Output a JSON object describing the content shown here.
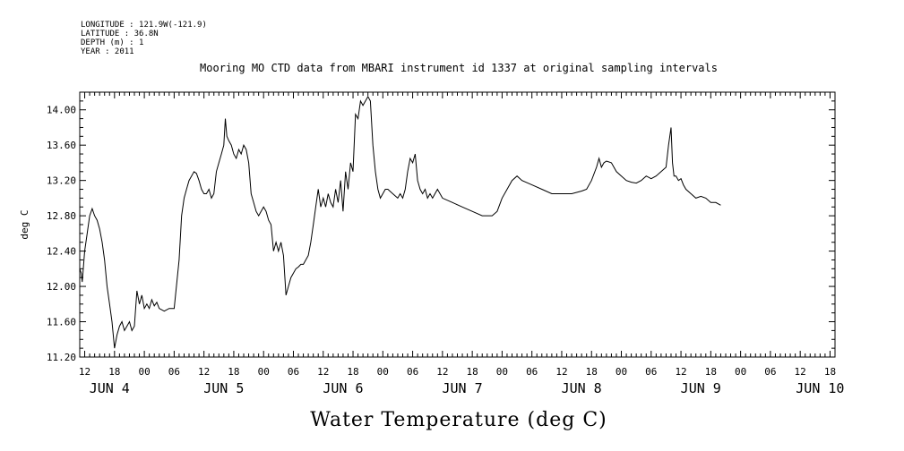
{
  "meta": {
    "longitude": "LONGITUDE : 121.9W(-121.9)",
    "latitude": "LATITUDE : 36.8N",
    "depth": "DEPTH (m) : 1",
    "year": "YEAR : 2011"
  },
  "chart_data": {
    "type": "line",
    "title": "Mooring MO CTD data from MBARI instrument id 1337 at original sampling intervals",
    "xlabel": "Water Temperature (deg C)",
    "ylabel": "deg C",
    "x_units": "hours since 2011-06-04 00:00",
    "xlim": [
      11,
      163
    ],
    "ylim": [
      11.2,
      14.2
    ],
    "yticks": [
      "11.20",
      "11.60",
      "12.00",
      "12.40",
      "12.80",
      "13.20",
      "13.60",
      "14.00"
    ],
    "xticks": [
      {
        "t": 12,
        "label": "12"
      },
      {
        "t": 18,
        "label": "18"
      },
      {
        "t": 24,
        "label": "00"
      },
      {
        "t": 30,
        "label": "06"
      },
      {
        "t": 36,
        "label": "12"
      },
      {
        "t": 42,
        "label": "18"
      },
      {
        "t": 48,
        "label": "00"
      },
      {
        "t": 54,
        "label": "06"
      },
      {
        "t": 60,
        "label": "12"
      },
      {
        "t": 66,
        "label": "18"
      },
      {
        "t": 72,
        "label": "00"
      },
      {
        "t": 78,
        "label": "06"
      },
      {
        "t": 84,
        "label": "12"
      },
      {
        "t": 90,
        "label": "18"
      },
      {
        "t": 96,
        "label": "00"
      },
      {
        "t": 102,
        "label": "06"
      },
      {
        "t": 108,
        "label": "12"
      },
      {
        "t": 114,
        "label": "18"
      },
      {
        "t": 120,
        "label": "00"
      },
      {
        "t": 126,
        "label": "06"
      },
      {
        "t": 132,
        "label": "12"
      },
      {
        "t": 138,
        "label": "18"
      },
      {
        "t": 144,
        "label": "00"
      },
      {
        "t": 150,
        "label": "06"
      },
      {
        "t": 156,
        "label": "12"
      },
      {
        "t": 162,
        "label": "18"
      }
    ],
    "day_labels": [
      {
        "t": 17,
        "label": "JUN  4"
      },
      {
        "t": 40,
        "label": "JUN  5"
      },
      {
        "t": 64,
        "label": "JUN  6"
      },
      {
        "t": 88,
        "label": "JUN  7"
      },
      {
        "t": 112,
        "label": "JUN  8"
      },
      {
        "t": 136,
        "label": "JUN  9"
      },
      {
        "t": 160,
        "label": "JUN 10"
      }
    ],
    "series": [
      {
        "points": [
          [
            11.0,
            12.2
          ],
          [
            11.3,
            12.15
          ],
          [
            11.5,
            12.05
          ],
          [
            12.0,
            12.4
          ],
          [
            12.5,
            12.6
          ],
          [
            13.0,
            12.8
          ],
          [
            13.5,
            12.88
          ],
          [
            14.0,
            12.8
          ],
          [
            14.5,
            12.75
          ],
          [
            15.0,
            12.65
          ],
          [
            15.5,
            12.5
          ],
          [
            16.0,
            12.3
          ],
          [
            16.5,
            12.0
          ],
          [
            17.0,
            11.8
          ],
          [
            17.5,
            11.6
          ],
          [
            18.0,
            11.3
          ],
          [
            18.5,
            11.45
          ],
          [
            19.0,
            11.55
          ],
          [
            19.5,
            11.6
          ],
          [
            20.0,
            11.5
          ],
          [
            20.5,
            11.55
          ],
          [
            21.0,
            11.6
          ],
          [
            21.5,
            11.5
          ],
          [
            22.0,
            11.55
          ],
          [
            22.5,
            11.95
          ],
          [
            23.0,
            11.8
          ],
          [
            23.5,
            11.9
          ],
          [
            24.0,
            11.75
          ],
          [
            24.5,
            11.8
          ],
          [
            25.0,
            11.75
          ],
          [
            25.5,
            11.85
          ],
          [
            26.0,
            11.78
          ],
          [
            26.5,
            11.82
          ],
          [
            27.0,
            11.75
          ],
          [
            28.0,
            11.72
          ],
          [
            29.0,
            11.75
          ],
          [
            30.0,
            11.75
          ],
          [
            31.0,
            12.3
          ],
          [
            31.5,
            12.8
          ],
          [
            32.0,
            13.0
          ],
          [
            32.5,
            13.1
          ],
          [
            33.0,
            13.2
          ],
          [
            33.5,
            13.25
          ],
          [
            34.0,
            13.3
          ],
          [
            34.5,
            13.28
          ],
          [
            35.0,
            13.2
          ],
          [
            35.5,
            13.1
          ],
          [
            36.0,
            13.05
          ],
          [
            36.5,
            13.05
          ],
          [
            37.0,
            13.1
          ],
          [
            37.5,
            13.0
          ],
          [
            38.0,
            13.05
          ],
          [
            38.5,
            13.3
          ],
          [
            39.0,
            13.4
          ],
          [
            39.5,
            13.5
          ],
          [
            40.0,
            13.6
          ],
          [
            40.3,
            13.9
          ],
          [
            40.6,
            13.7
          ],
          [
            41.0,
            13.65
          ],
          [
            41.5,
            13.6
          ],
          [
            42.0,
            13.5
          ],
          [
            42.5,
            13.45
          ],
          [
            43.0,
            13.55
          ],
          [
            43.5,
            13.5
          ],
          [
            44.0,
            13.6
          ],
          [
            44.5,
            13.55
          ],
          [
            45.0,
            13.4
          ],
          [
            45.5,
            13.05
          ],
          [
            46.0,
            12.95
          ],
          [
            46.5,
            12.85
          ],
          [
            47.0,
            12.8
          ],
          [
            47.5,
            12.85
          ],
          [
            48.0,
            12.9
          ],
          [
            48.5,
            12.85
          ],
          [
            49.0,
            12.75
          ],
          [
            49.5,
            12.7
          ],
          [
            50.0,
            12.4
          ],
          [
            50.5,
            12.5
          ],
          [
            51.0,
            12.4
          ],
          [
            51.5,
            12.5
          ],
          [
            52.0,
            12.35
          ],
          [
            52.5,
            11.9
          ],
          [
            53.0,
            12.0
          ],
          [
            53.5,
            12.1
          ],
          [
            54.0,
            12.15
          ],
          [
            54.5,
            12.2
          ],
          [
            55.0,
            12.22
          ],
          [
            55.5,
            12.25
          ],
          [
            56.0,
            12.25
          ],
          [
            56.5,
            12.3
          ],
          [
            57.0,
            12.35
          ],
          [
            57.5,
            12.5
          ],
          [
            58.0,
            12.7
          ],
          [
            58.5,
            12.9
          ],
          [
            59.0,
            13.1
          ],
          [
            59.5,
            12.9
          ],
          [
            60.0,
            13.0
          ],
          [
            60.5,
            12.9
          ],
          [
            61.0,
            13.05
          ],
          [
            61.5,
            12.95
          ],
          [
            62.0,
            12.9
          ],
          [
            62.5,
            13.1
          ],
          [
            63.0,
            12.95
          ],
          [
            63.5,
            13.2
          ],
          [
            64.0,
            12.85
          ],
          [
            64.5,
            13.3
          ],
          [
            65.0,
            13.1
          ],
          [
            65.5,
            13.4
          ],
          [
            66.0,
            13.3
          ],
          [
            66.5,
            13.95
          ],
          [
            67.0,
            13.9
          ],
          [
            67.5,
            14.1
          ],
          [
            68.0,
            14.05
          ],
          [
            68.5,
            14.1
          ],
          [
            69.0,
            14.15
          ],
          [
            69.5,
            14.1
          ],
          [
            70.0,
            13.6
          ],
          [
            70.5,
            13.3
          ],
          [
            71.0,
            13.1
          ],
          [
            71.5,
            13.0
          ],
          [
            72.0,
            13.05
          ],
          [
            72.5,
            13.1
          ],
          [
            73.0,
            13.1
          ],
          [
            74.0,
            13.05
          ],
          [
            75.0,
            13.0
          ],
          [
            75.5,
            13.05
          ],
          [
            76.0,
            13.0
          ],
          [
            76.5,
            13.1
          ],
          [
            77.0,
            13.3
          ],
          [
            77.5,
            13.45
          ],
          [
            78.0,
            13.4
          ],
          [
            78.5,
            13.5
          ],
          [
            79.0,
            13.2
          ],
          [
            79.5,
            13.1
          ],
          [
            80.0,
            13.05
          ],
          [
            80.5,
            13.1
          ],
          [
            81.0,
            13.0
          ],
          [
            81.5,
            13.05
          ],
          [
            82.0,
            13.0
          ],
          [
            82.5,
            13.05
          ],
          [
            83.0,
            13.1
          ],
          [
            84.0,
            13.0
          ],
          [
            86.0,
            12.95
          ],
          [
            88.0,
            12.9
          ],
          [
            90.0,
            12.85
          ],
          [
            92.0,
            12.8
          ],
          [
            94.0,
            12.8
          ],
          [
            95.0,
            12.85
          ],
          [
            96.0,
            13.0
          ],
          [
            97.0,
            13.1
          ],
          [
            98.0,
            13.2
          ],
          [
            99.0,
            13.25
          ],
          [
            100.0,
            13.2
          ],
          [
            102.0,
            13.15
          ],
          [
            104.0,
            13.1
          ],
          [
            106.0,
            13.05
          ],
          [
            108.0,
            13.05
          ],
          [
            110.0,
            13.05
          ],
          [
            112.0,
            13.08
          ],
          [
            113.0,
            13.1
          ],
          [
            114.0,
            13.2
          ],
          [
            115.0,
            13.35
          ],
          [
            115.5,
            13.45
          ],
          [
            116.0,
            13.35
          ],
          [
            116.5,
            13.4
          ],
          [
            117.0,
            13.42
          ],
          [
            118.0,
            13.4
          ],
          [
            119.0,
            13.3
          ],
          [
            120.0,
            13.25
          ],
          [
            121.0,
            13.2
          ],
          [
            122.0,
            13.18
          ],
          [
            123.0,
            13.17
          ],
          [
            124.0,
            13.2
          ],
          [
            125.0,
            13.25
          ],
          [
            126.0,
            13.22
          ],
          [
            127.0,
            13.25
          ],
          [
            128.0,
            13.3
          ],
          [
            129.0,
            13.35
          ],
          [
            129.5,
            13.6
          ],
          [
            130.0,
            13.8
          ],
          [
            130.3,
            13.4
          ],
          [
            130.6,
            13.25
          ],
          [
            131.0,
            13.25
          ],
          [
            131.5,
            13.2
          ],
          [
            132.0,
            13.22
          ],
          [
            132.5,
            13.15
          ],
          [
            133.0,
            13.1
          ],
          [
            134.0,
            13.05
          ],
          [
            135.0,
            13.0
          ],
          [
            136.0,
            13.02
          ],
          [
            137.0,
            13.0
          ],
          [
            138.0,
            12.95
          ],
          [
            139.0,
            12.95
          ],
          [
            140.0,
            12.92
          ]
        ]
      }
    ]
  }
}
